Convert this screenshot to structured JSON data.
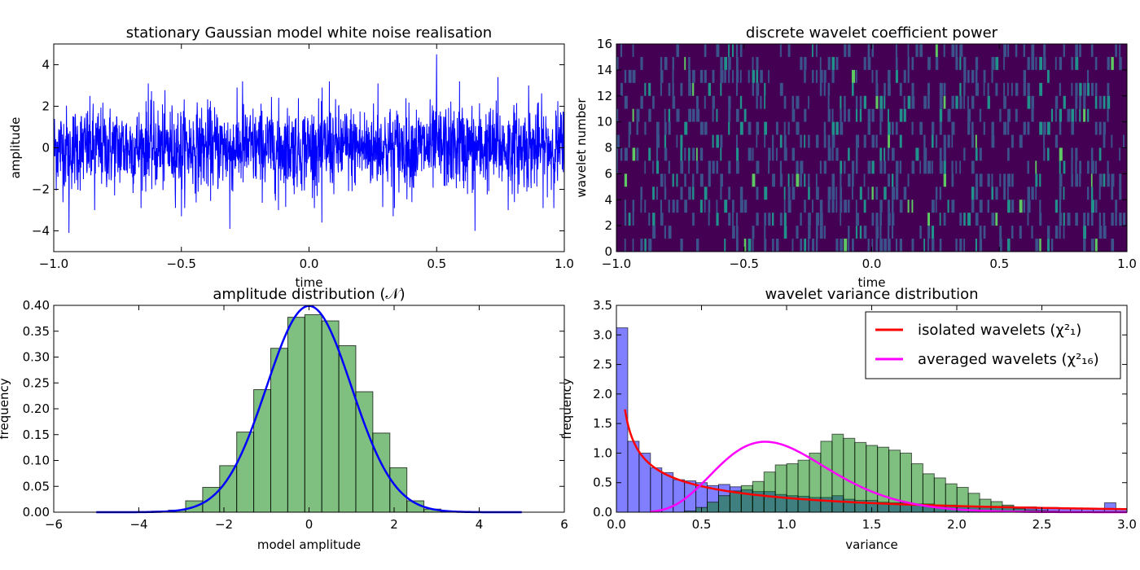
{
  "chart_data": [
    {
      "type": "line",
      "title": "stationary Gaussian model white noise realisation",
      "xlabel": "time",
      "ylabel": "amplitude",
      "xlim": [
        -1.0,
        1.0
      ],
      "ylim": [
        -5,
        5
      ],
      "xticks": [
        -1.0,
        -0.5,
        0.0,
        0.5,
        1.0
      ],
      "xtick_labels": [
        "−1.0",
        "−0.5",
        "0.0",
        "0.5",
        "1.0"
      ],
      "yticks": [
        -4,
        -2,
        0,
        2,
        4
      ],
      "ytick_labels": [
        "−4",
        "−2",
        "0",
        "2",
        "4"
      ],
      "series": [
        {
          "color": "#0000ff",
          "sigma": 1.0,
          "n_points": 2048,
          "envelope": {
            "typical_max": 2.5,
            "typical_min": -2.5
          },
          "peaks": [
            {
              "x": 0.5,
              "y": 4.5
            },
            {
              "x": -0.94,
              "y": 3.0
            },
            {
              "x": -0.84,
              "y": 3.3
            },
            {
              "x": -0.63,
              "y": 3.1
            },
            {
              "x": -0.5,
              "y": 3.0
            },
            {
              "x": -0.26,
              "y": 3.2
            },
            {
              "x": 0.08,
              "y": 3.2
            },
            {
              "x": 0.27,
              "y": 3.1
            },
            {
              "x": 0.59,
              "y": 3.2
            },
            {
              "x": 0.74,
              "y": 3.4
            },
            {
              "x": 0.86,
              "y": 3.0
            },
            {
              "x": -0.94,
              "y": -4.1
            },
            {
              "x": -0.84,
              "y": -3.0
            },
            {
              "x": -0.5,
              "y": -3.3
            },
            {
              "x": -0.31,
              "y": -3.9
            },
            {
              "x": -0.12,
              "y": -3.0
            },
            {
              "x": 0.05,
              "y": -3.6
            },
            {
              "x": 0.33,
              "y": -3.3
            },
            {
              "x": 0.65,
              "y": -4.0
            },
            {
              "x": 0.78,
              "y": -3.0
            }
          ]
        }
      ]
    },
    {
      "type": "heatmap",
      "title": "discrete wavelet coefficient power",
      "xlabel": "time",
      "ylabel": "wavelet number",
      "xlim": [
        -1.0,
        1.0
      ],
      "ylim": [
        0,
        16
      ],
      "xticks": [
        -1.0,
        -0.5,
        0.0,
        0.5,
        1.0
      ],
      "xtick_labels": [
        "−1.0",
        "−0.5",
        "0.0",
        "0.5",
        "1.0"
      ],
      "yticks": [
        0,
        2,
        4,
        6,
        8,
        10,
        12,
        14,
        16
      ],
      "ytick_labels": [
        "0",
        "2",
        "4",
        "6",
        "8",
        "10",
        "12",
        "14",
        "16"
      ],
      "rows": 16,
      "columns": 128,
      "colormap": [
        "#440154",
        "#3b528b",
        "#21918c",
        "#5ec962"
      ],
      "background": "#440154"
    },
    {
      "type": "bar",
      "title": "amplitude distribution (𝒩)",
      "xlabel": "model amplitude",
      "ylabel": "frequency",
      "xlim": [
        -6,
        6
      ],
      "ylim": [
        0,
        0.4
      ],
      "xticks": [
        -6,
        -4,
        -2,
        0,
        2,
        4,
        6
      ],
      "xtick_labels": [
        "−6",
        "−4",
        "−2",
        "0",
        "2",
        "4",
        "6"
      ],
      "yticks": [
        0,
        0.05,
        0.1,
        0.15,
        0.2,
        0.25,
        0.3,
        0.35,
        0.4
      ],
      "ytick_labels": [
        "0.00",
        "0.05",
        "0.10",
        "0.15",
        "0.20",
        "0.25",
        "0.30",
        "0.35",
        "0.40"
      ],
      "histogram": {
        "color": "#008000",
        "bin_edges": [
          -3.7,
          -3.3,
          -2.9,
          -2.5,
          -2.1,
          -1.7,
          -1.3,
          -0.9,
          -0.5,
          -0.1,
          0.3,
          0.7,
          1.1,
          1.5,
          1.9,
          2.3,
          2.7,
          3.1,
          3.5
        ],
        "values": [
          0.002,
          0.004,
          0.022,
          0.048,
          0.09,
          0.155,
          0.237,
          0.317,
          0.377,
          0.382,
          0.37,
          0.322,
          0.233,
          0.153,
          0.086,
          0.022,
          0.006,
          0.001
        ]
      },
      "curve": {
        "kind": "normal_pdf",
        "mu": 0,
        "sigma": 1,
        "x_range": [
          -5,
          5
        ],
        "color": "#0000ff"
      }
    },
    {
      "type": "bar",
      "title": "wavelet variance distribution",
      "xlabel": "variance",
      "ylabel": "frequency",
      "xlim": [
        0,
        3.0
      ],
      "ylim": [
        0,
        3.5
      ],
      "xticks": [
        0,
        0.5,
        1.0,
        1.5,
        2.0,
        2.5,
        3.0
      ],
      "xtick_labels": [
        "0.0",
        "0.5",
        "1.0",
        "1.5",
        "2.0",
        "2.5",
        "3.0"
      ],
      "yticks": [
        0,
        0.5,
        1.0,
        1.5,
        2.0,
        2.5,
        3.0,
        3.5
      ],
      "ytick_labels": [
        "0.0",
        "0.5",
        "1.0",
        "1.5",
        "2.0",
        "2.5",
        "3.0",
        "3.5"
      ],
      "legend_position": "top-right",
      "histograms": [
        {
          "color": "#0000ff",
          "bin_width": 0.0667,
          "values": [
            3.12,
            1.2,
            1.0,
            0.75,
            0.67,
            0.55,
            0.53,
            0.5,
            0.45,
            0.47,
            0.43,
            0.38,
            0.35,
            0.35,
            0.3,
            0.28,
            0.27,
            0.25,
            0.25,
            0.28,
            0.22,
            0.2,
            0.2,
            0.17,
            0.16,
            0.16,
            0.14,
            0.14,
            0.12,
            0.12,
            0.11,
            0.1,
            0.1,
            0.1,
            0.1,
            0.09,
            0.09,
            0.08,
            0.08,
            0.07,
            0.07,
            0.07,
            0.06,
            0.16,
            0.06
          ]
        },
        {
          "color": "#008000",
          "bin_width": 0.0667,
          "values": [
            0,
            0,
            0,
            0,
            0,
            0,
            0.02,
            0.08,
            0.17,
            0.28,
            0.36,
            0.45,
            0.52,
            0.68,
            0.8,
            0.82,
            0.88,
            1.0,
            1.2,
            1.32,
            1.25,
            1.18,
            1.13,
            1.1,
            1.05,
            1.0,
            0.82,
            0.65,
            0.58,
            0.48,
            0.42,
            0.32,
            0.22,
            0.18,
            0.12,
            0.06,
            0.04,
            0.03,
            0.02,
            0.01,
            0.01,
            0,
            0,
            0,
            0
          ]
        }
      ],
      "series": [
        {
          "name": "isolated wavelets (χ²₁)",
          "kind": "chi2_pdf",
          "k": 1,
          "x_range": [
            0.05,
            3.0
          ],
          "color": "#ff0000"
        },
        {
          "name": "averaged wavelets (χ²₁₆)",
          "kind": "mean_chi2_pdf",
          "k": 16,
          "x_range": [
            0.2,
            3.0
          ],
          "color": "#ff00ff"
        }
      ]
    }
  ]
}
